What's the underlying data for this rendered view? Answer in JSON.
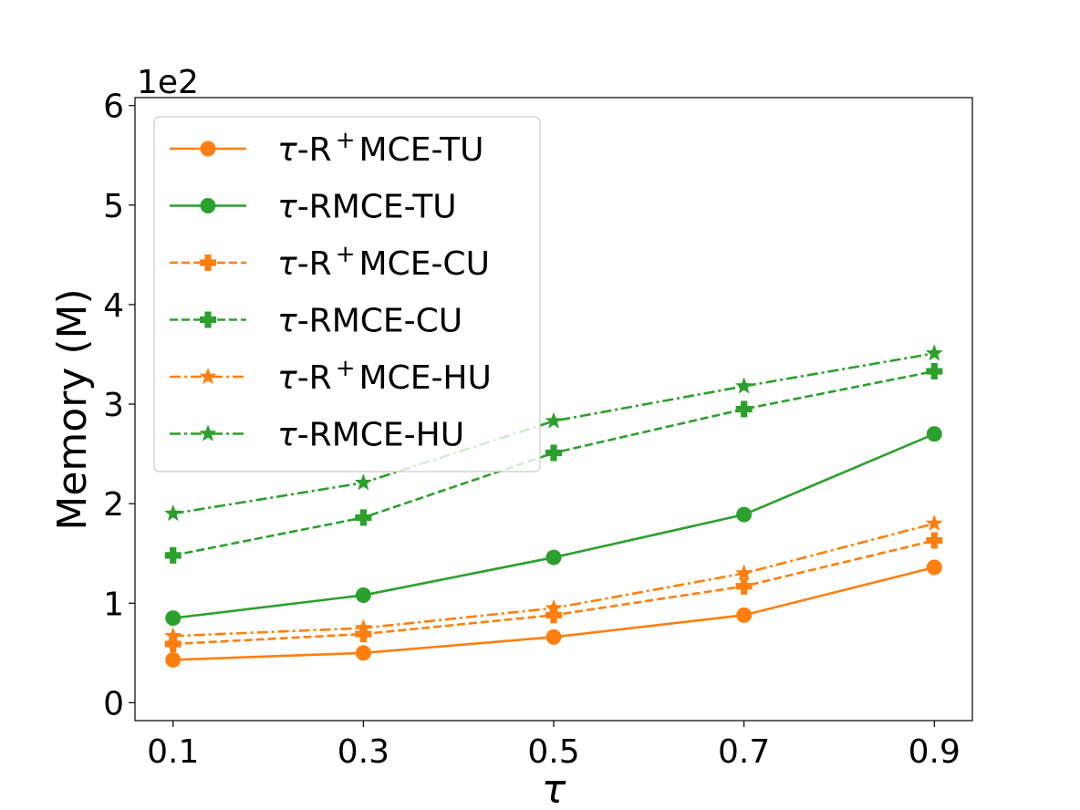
{
  "chart_data": {
    "type": "line",
    "title": "",
    "xlabel": "τ",
    "ylabel": "Memory (M)",
    "y_offset_label": "1e2",
    "x": [
      0.1,
      0.3,
      0.5,
      0.7,
      0.9
    ],
    "x_tick_labels": [
      "0.1",
      "0.3",
      "0.5",
      "0.7",
      "0.9"
    ],
    "y_ticks": [
      0,
      1,
      2,
      3,
      4,
      5,
      6
    ],
    "y_tick_labels": [
      "0",
      "1",
      "2",
      "3",
      "4",
      "5",
      "6"
    ],
    "xlim": [
      0.06,
      0.94
    ],
    "ylim": [
      -0.18,
      6.08
    ],
    "grid": false,
    "legend_position": "upper-left",
    "colors": {
      "orange": "#ff7f0e",
      "green": "#2ca02c"
    },
    "series": [
      {
        "name": "τ-R⁺MCE-TU",
        "legend_prefix": "τ",
        "legend_main": "-R",
        "legend_sup": "+",
        "legend_suffix": "MCE-TU",
        "color": "#ff7f0e",
        "dash": "solid",
        "marker": "circle",
        "values": [
          0.43,
          0.5,
          0.66,
          0.88,
          1.36
        ]
      },
      {
        "name": "τ-RMCE-TU",
        "legend_prefix": "τ",
        "legend_main": "-RMCE-TU",
        "legend_sup": "",
        "legend_suffix": "",
        "color": "#2ca02c",
        "dash": "solid",
        "marker": "circle",
        "values": [
          0.85,
          1.08,
          1.46,
          1.89,
          2.7
        ]
      },
      {
        "name": "τ-R⁺MCE-CU",
        "legend_prefix": "τ",
        "legend_main": "-R",
        "legend_sup": "+",
        "legend_suffix": "MCE-CU",
        "color": "#ff7f0e",
        "dash": "dashed",
        "marker": "plus",
        "values": [
          0.59,
          0.69,
          0.88,
          1.17,
          1.63
        ]
      },
      {
        "name": "τ-RMCE-CU",
        "legend_prefix": "τ",
        "legend_main": "-RMCE-CU",
        "legend_sup": "",
        "legend_suffix": "",
        "color": "#2ca02c",
        "dash": "dashed",
        "marker": "plus",
        "values": [
          1.48,
          1.86,
          2.51,
          2.95,
          3.33
        ]
      },
      {
        "name": "τ-R⁺MCE-HU",
        "legend_prefix": "τ",
        "legend_main": "-R",
        "legend_sup": "+",
        "legend_suffix": "MCE-HU",
        "color": "#ff7f0e",
        "dash": "dashdot",
        "marker": "star",
        "values": [
          0.67,
          0.75,
          0.95,
          1.3,
          1.8
        ]
      },
      {
        "name": "τ-RMCE-HU",
        "legend_prefix": "τ",
        "legend_main": "-RMCE-HU",
        "legend_sup": "",
        "legend_suffix": "",
        "color": "#2ca02c",
        "dash": "dashdot",
        "marker": "star",
        "values": [
          1.9,
          2.21,
          2.83,
          3.18,
          3.51
        ]
      }
    ]
  }
}
